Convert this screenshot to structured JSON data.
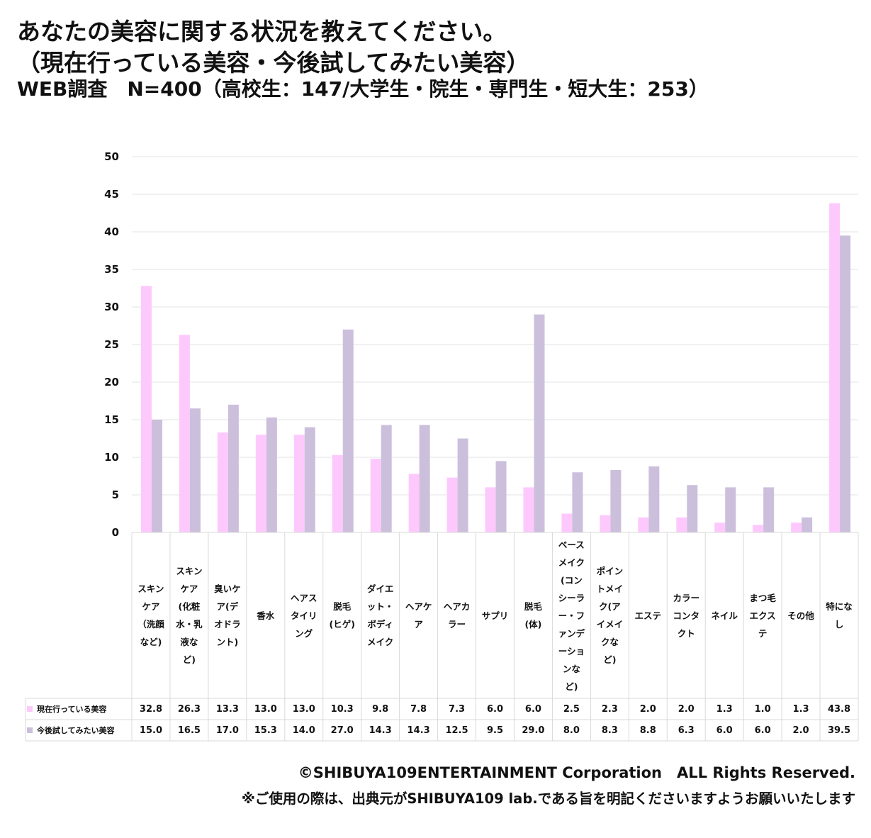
{
  "title_line1": "あなたの美容に関する状況を教えてください。",
  "title_line2": "（現在行っている美容・今後試してみたい美容）",
  "title_line3": "WEB調査　N=400（高校生：147/大学生・院生・専門生・短大生：253）",
  "footer_copyright": "©SHIBUYA109ENTERTAINMENT Corporation　ALL Rights Reserved.",
  "footer_note": "※ご使用の際は、出典元がSHIBUYA109 lab.である旨を明記くださいますようお願いいたします",
  "colors": {
    "current": "#fdc9fd",
    "future": "#ccbfdc",
    "grid": "#e3e3e3",
    "border": "#d9d9d9"
  },
  "chart_data": {
    "type": "bar",
    "ylim": [
      0,
      50
    ],
    "yticks": [
      "0",
      "5",
      "10",
      "15",
      "20",
      "25",
      "30",
      "35",
      "40",
      "45",
      "50"
    ],
    "grid": true,
    "legend_placement": "data-table-left",
    "categories": [
      "スキンケア（洗顔など)",
      "スキンケア(化粧水・乳液など)",
      "臭いケア(デオドラント)",
      "香水",
      "ヘアスタイリング",
      "脱毛(ヒゲ)",
      "ダイエット・ボディメイク",
      "ヘアケア",
      "ヘアカラー",
      "サプリ",
      "脱毛(体)",
      "ベースメイク(コンシーラー・ファンデーションなど)",
      "ポイントメイク(アイメイクなど)",
      "エステ",
      "カラーコンタクト",
      "ネイル",
      "まつ毛エクステ",
      "その他",
      "特になし"
    ],
    "series": [
      {
        "name": "現在行っている美容",
        "values": [
          32.8,
          26.3,
          13.3,
          13.0,
          13.0,
          10.3,
          9.8,
          7.8,
          7.3,
          6.0,
          6.0,
          2.5,
          2.3,
          2.0,
          2.0,
          1.3,
          1.0,
          1.3,
          43.8
        ],
        "labels": [
          "32.8",
          "26.3",
          "13.3",
          "13.0",
          "13.0",
          "10.3",
          "9.8",
          "7.8",
          "7.3",
          "6.0",
          "6.0",
          "2.5",
          "2.3",
          "2.0",
          "2.0",
          "1.3",
          "1.0",
          "1.3",
          "43.8"
        ]
      },
      {
        "name": "今後試してみたい美容",
        "values": [
          15.0,
          16.5,
          17.0,
          15.3,
          14.0,
          27.0,
          14.3,
          14.3,
          12.5,
          9.5,
          29.0,
          8.0,
          8.3,
          8.8,
          6.3,
          6.0,
          6.0,
          2.0,
          39.5
        ],
        "labels": [
          "15.0",
          "16.5",
          "17.0",
          "15.3",
          "14.0",
          "27.0",
          "14.3",
          "14.3",
          "12.5",
          "9.5",
          "29.0",
          "8.0",
          "8.3",
          "8.8",
          "6.3",
          "6.0",
          "6.0",
          "2.0",
          "39.5"
        ]
      }
    ]
  }
}
